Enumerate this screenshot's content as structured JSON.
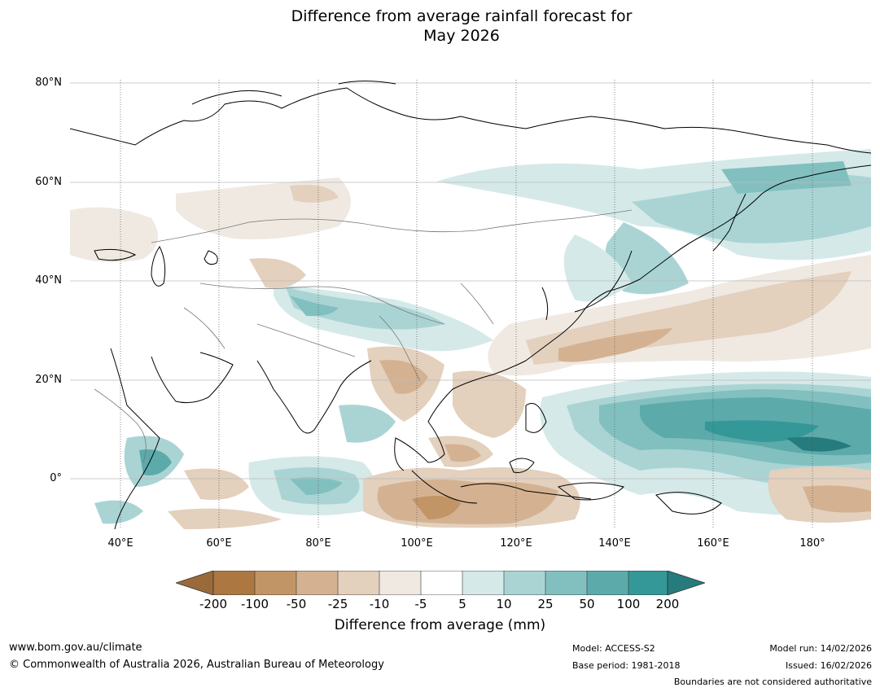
{
  "title": {
    "line1": "Difference from average rainfall forecast for",
    "line2": "May 2026"
  },
  "map": {
    "lat_labels": [
      "80°N",
      "60°N",
      "40°N",
      "20°N",
      "0°"
    ],
    "lon_labels": [
      "40°E",
      "60°E",
      "80°E",
      "100°E",
      "120°E",
      "140°E",
      "160°E",
      "180°"
    ],
    "colors": {
      "brown_200": "#ad7741",
      "brown_100": "#c29566",
      "brown_50": "#d4b291",
      "brown_25": "#e3d0bd",
      "brown_10": "#efe9e2",
      "neutral": "#ffffff",
      "teal_10": "#d5e9e9",
      "teal_25": "#aad4d4",
      "teal_50": "#82c0c0",
      "teal_100": "#5caaaa",
      "teal_200": "#349898",
      "teal_max": "#267c7c"
    }
  },
  "colorbar": {
    "ticks": [
      "-200",
      "-100",
      "-50",
      "-25",
      "-10",
      "-5",
      "5",
      "10",
      "25",
      "50",
      "100",
      "200"
    ],
    "label": "Difference from average (mm)"
  },
  "footer": {
    "website": "www.bom.gov.au/climate",
    "copyright": "© Commonwealth of Australia 2026, Australian Bureau of Meteorology",
    "model": "Model: ACCESS-S2",
    "base_period": "Base period: 1981-2018",
    "model_run": "Model run: 14/02/2026",
    "issued": "Issued: 16/02/2026",
    "disclaimer": "Boundaries are not considered authoritative"
  }
}
